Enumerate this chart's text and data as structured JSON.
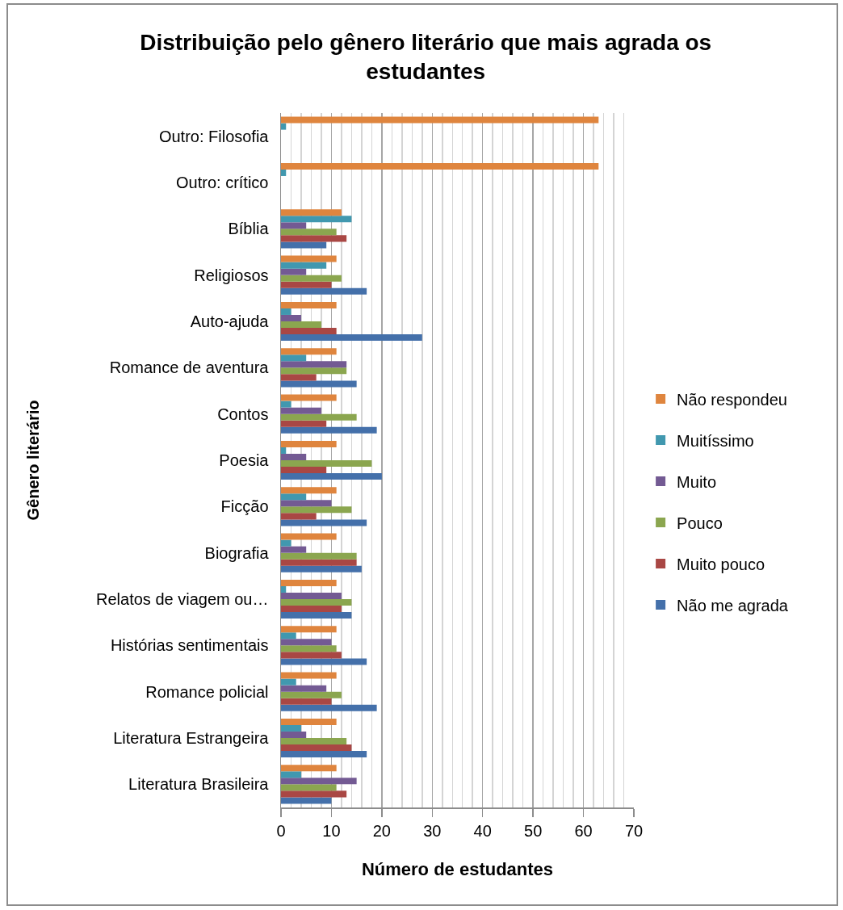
{
  "chart_data": {
    "type": "bar",
    "orientation": "horizontal",
    "title": "Distribuição pelo gênero literário que mais agrada os estudantes",
    "xlabel": "Número de estudantes",
    "ylabel": "Gênero literário",
    "categories": [
      "Outro: Filosofia",
      "Outro: crítico",
      "Bíblia",
      "Religiosos",
      "Auto-ajuda",
      "Romance de aventura",
      "Contos",
      "Poesia",
      "Ficção",
      "Biografia",
      "Relatos de viagem ou…",
      "Histórias sentimentais",
      "Romance policial",
      "Literatura Estrangeira",
      "Literatura Brasileira"
    ],
    "series": [
      {
        "name": "Não me agrada",
        "color": "#4470aa",
        "values": [
          null,
          null,
          9,
          17,
          28,
          15,
          19,
          20,
          17,
          16,
          14,
          17,
          19,
          17,
          10
        ]
      },
      {
        "name": "Muito pouco",
        "color": "#a94744",
        "values": [
          null,
          null,
          13,
          10,
          11,
          7,
          9,
          9,
          7,
          15,
          12,
          12,
          10,
          14,
          13
        ]
      },
      {
        "name": "Pouco",
        "color": "#8ba64f",
        "values": [
          null,
          null,
          11,
          12,
          8,
          13,
          15,
          18,
          14,
          15,
          14,
          11,
          12,
          13,
          11
        ]
      },
      {
        "name": "Muito",
        "color": "#735a93",
        "values": [
          null,
          null,
          5,
          5,
          4,
          13,
          8,
          5,
          10,
          5,
          12,
          10,
          9,
          5,
          15
        ]
      },
      {
        "name": "Muitíssimo",
        "color": "#4198af",
        "values": [
          1,
          1,
          14,
          9,
          2,
          5,
          2,
          1,
          5,
          2,
          1,
          3,
          3,
          4,
          4
        ]
      },
      {
        "name": "Não respondeu",
        "color": "#df853e",
        "values": [
          63,
          63,
          12,
          11,
          11,
          11,
          11,
          11,
          11,
          11,
          11,
          11,
          11,
          11,
          11
        ]
      }
    ],
    "xlim": [
      0,
      70
    ],
    "xticks": [
      0,
      {
        "value": 2,
        "label": null
      },
      {
        "value": 4,
        "label": null
      },
      {
        "value": 6,
        "label": null
      },
      {
        "value": 8,
        "label": null
      },
      10,
      {
        "value": 12,
        "label": null
      },
      {
        "value": 14,
        "label": null
      },
      {
        "value": 16,
        "label": null
      },
      {
        "value": 18,
        "label": null
      },
      20,
      {
        "value": 22,
        "label": null
      },
      {
        "value": 24,
        "label": null
      },
      {
        "value": 26,
        "label": null
      },
      {
        "value": 28,
        "label": null
      },
      30,
      {
        "value": 32,
        "label": null
      },
      {
        "value": 34,
        "label": null
      },
      {
        "value": 36,
        "label": null
      },
      {
        "value": 38,
        "label": null
      },
      40,
      {
        "value": 42,
        "label": null
      },
      {
        "value": 44,
        "label": null
      },
      {
        "value": 46,
        "label": null
      },
      {
        "value": 48,
        "label": null
      },
      50,
      {
        "value": 52,
        "label": null
      },
      {
        "value": 54,
        "label": null
      },
      {
        "value": 56,
        "label": null
      },
      {
        "value": 58,
        "label": null
      },
      60,
      {
        "value": 62,
        "label": null
      },
      {
        "value": 64,
        "label": null
      },
      {
        "value": 66,
        "label": null
      },
      {
        "value": 68,
        "label": null
      },
      70
    ],
    "grid": "x",
    "legend": "right"
  }
}
